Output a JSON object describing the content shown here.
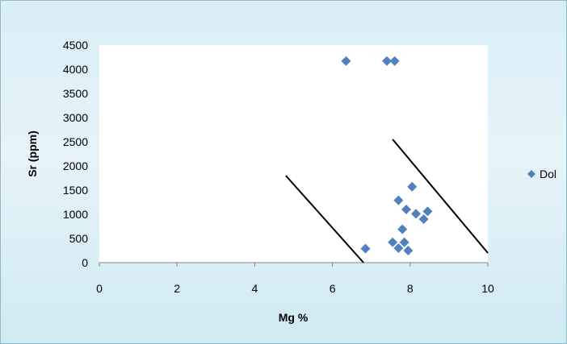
{
  "chart_data": {
    "type": "scatter",
    "title": "",
    "xlabel": "Mg %",
    "ylabel": "Sr (ppm)",
    "xlim": [
      0,
      10
    ],
    "ylim": [
      0,
      4500
    ],
    "x_ticks": [
      0,
      2,
      4,
      6,
      8,
      10
    ],
    "y_ticks": [
      0,
      500,
      1000,
      1500,
      2000,
      2500,
      3000,
      3500,
      4000,
      4500
    ],
    "grid": false,
    "legend_position": "right",
    "series": [
      {
        "name": "Dol",
        "color": "#4f81bd",
        "marker": "diamond",
        "points": [
          {
            "x": 6.35,
            "y": 4170
          },
          {
            "x": 7.4,
            "y": 4170
          },
          {
            "x": 7.6,
            "y": 4170
          },
          {
            "x": 6.85,
            "y": 290
          },
          {
            "x": 7.55,
            "y": 420
          },
          {
            "x": 7.7,
            "y": 300
          },
          {
            "x": 7.85,
            "y": 420
          },
          {
            "x": 7.95,
            "y": 250
          },
          {
            "x": 7.8,
            "y": 690
          },
          {
            "x": 7.7,
            "y": 1290
          },
          {
            "x": 7.9,
            "y": 1100
          },
          {
            "x": 8.05,
            "y": 1570
          },
          {
            "x": 8.15,
            "y": 1010
          },
          {
            "x": 8.35,
            "y": 900
          },
          {
            "x": 8.45,
            "y": 1060
          }
        ]
      }
    ],
    "annotation_lines": [
      {
        "x1": 4.8,
        "y1": 1800,
        "x2": 6.8,
        "y2": 0,
        "color": "#000000"
      },
      {
        "x1": 7.55,
        "y1": 2550,
        "x2": 10.0,
        "y2": 200,
        "color": "#000000"
      }
    ]
  }
}
